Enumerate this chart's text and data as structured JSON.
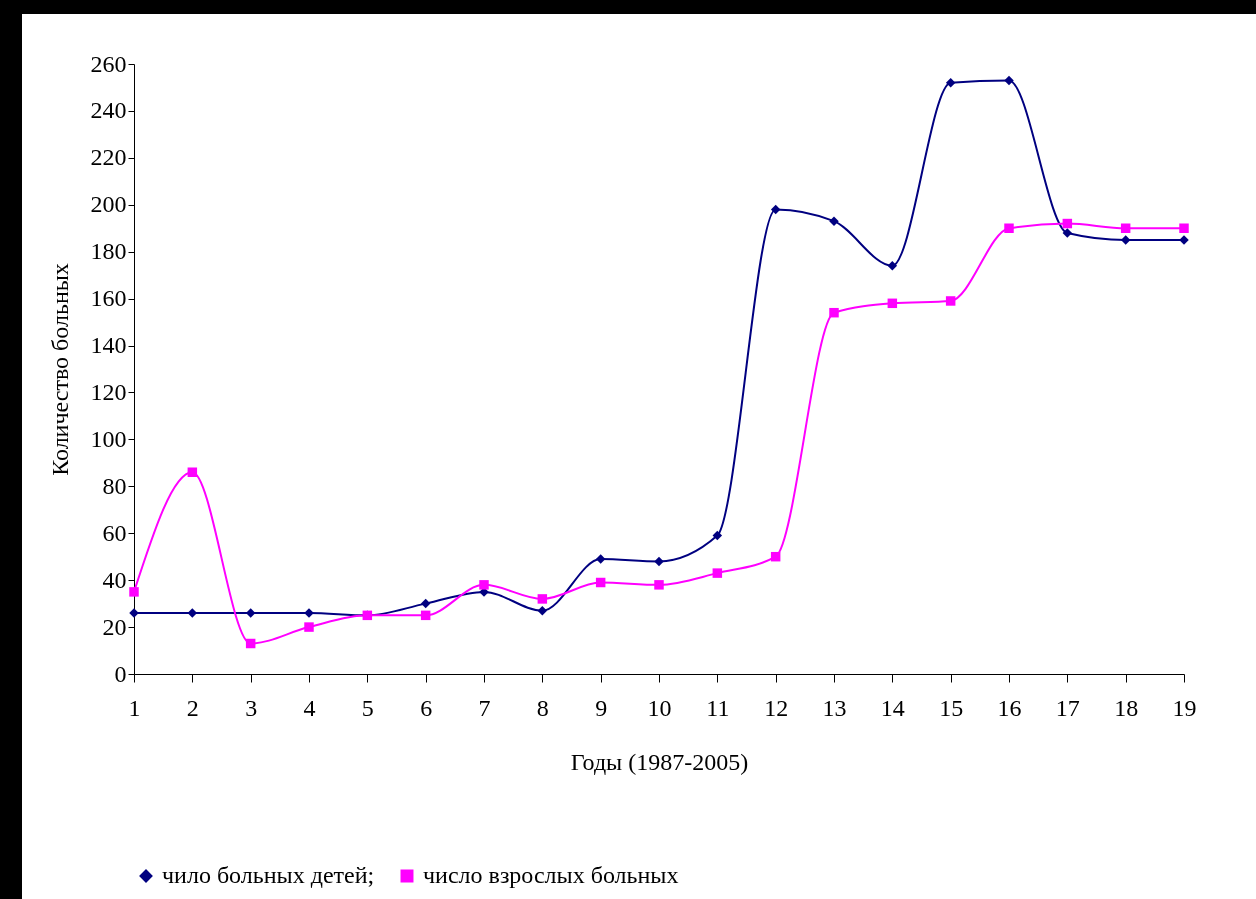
{
  "chart_data": {
    "type": "line",
    "xlabel": "Годы (1987-2005)",
    "ylabel": "Количество больных",
    "x": [
      1,
      2,
      3,
      4,
      5,
      6,
      7,
      8,
      9,
      10,
      11,
      12,
      13,
      14,
      15,
      16,
      17,
      18,
      19
    ],
    "series": [
      {
        "name": "чило больных детей;",
        "color": "#000080",
        "marker": "diamond",
        "values": [
          26,
          26,
          26,
          26,
          25,
          30,
          35,
          27,
          49,
          48,
          59,
          198,
          193,
          174,
          252,
          253,
          188,
          185,
          185
        ]
      },
      {
        "name": "число взрослых больных",
        "color": "#ff00ff",
        "marker": "square",
        "values": [
          35,
          86,
          13,
          20,
          25,
          25,
          38,
          32,
          39,
          38,
          43,
          50,
          154,
          158,
          159,
          190,
          192,
          190,
          190
        ]
      }
    ],
    "xlim": [
      1,
      19
    ],
    "xticks": [
      1,
      2,
      3,
      4,
      5,
      6,
      7,
      8,
      9,
      10,
      11,
      12,
      13,
      14,
      15,
      16,
      17,
      18,
      19
    ],
    "ylim": [
      0,
      260
    ],
    "yticks": [
      0,
      20,
      40,
      60,
      80,
      100,
      120,
      140,
      160,
      180,
      200,
      220,
      240,
      260
    ],
    "grid": false,
    "legend": "bottom"
  }
}
